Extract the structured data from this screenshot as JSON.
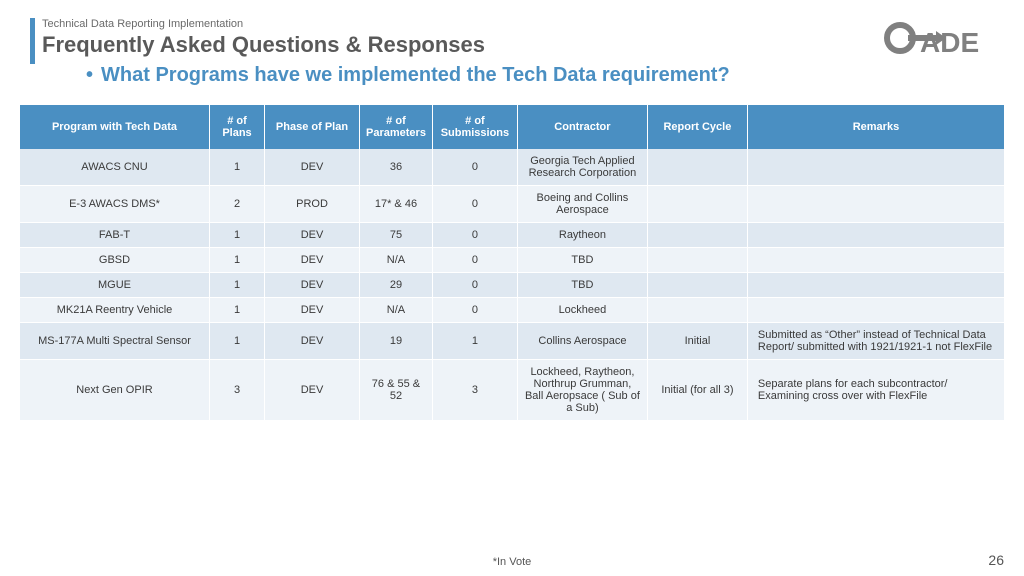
{
  "header": {
    "kicker": "Technical Data Reporting Implementation",
    "title": "Frequently Asked Questions & Responses",
    "subtitle": "What Programs have we implemented the Tech Data requirement?"
  },
  "logo": {
    "text": "CADE",
    "fill": "#808080"
  },
  "table": {
    "header_bg": "#4a8fc2",
    "header_fg": "#ffffff",
    "band_a_bg": "#dfe8f1",
    "band_b_bg": "#eef3f8",
    "columns": [
      "Program with Tech Data",
      "# of Plans",
      "Phase of Plan",
      "# of Parameters",
      "# of Submissions",
      "Contractor",
      "Report Cycle",
      "Remarks"
    ],
    "rows": [
      {
        "program": "AWACS CNU",
        "plans": "1",
        "phase": "DEV",
        "params": "36",
        "subs": "0",
        "contractor": "Georgia Tech Applied Research Corporation",
        "cycle": "",
        "remarks": ""
      },
      {
        "program": "E-3 AWACS DMS*",
        "plans": "2",
        "phase": "PROD",
        "params": "17* & 46",
        "subs": "0",
        "contractor": "Boeing and Collins Aerospace",
        "cycle": "",
        "remarks": ""
      },
      {
        "program": "FAB-T",
        "plans": "1",
        "phase": "DEV",
        "params": "75",
        "subs": "0",
        "contractor": "Raytheon",
        "cycle": "",
        "remarks": ""
      },
      {
        "program": "GBSD",
        "plans": "1",
        "phase": "DEV",
        "params": "N/A",
        "subs": "0",
        "contractor": "TBD",
        "cycle": "",
        "remarks": ""
      },
      {
        "program": "MGUE",
        "plans": "1",
        "phase": "DEV",
        "params": "29",
        "subs": "0",
        "contractor": "TBD",
        "cycle": "",
        "remarks": ""
      },
      {
        "program": "MK21A Reentry Vehicle",
        "plans": "1",
        "phase": "DEV",
        "params": "N/A",
        "subs": "0",
        "contractor": "Lockheed",
        "cycle": "",
        "remarks": ""
      },
      {
        "program": "MS-177A Multi Spectral Sensor",
        "plans": "1",
        "phase": "DEV",
        "params": "19",
        "subs": "1",
        "contractor": "Collins Aerospace",
        "cycle": "Initial",
        "remarks": "Submitted as “Other” instead of Technical Data Report/ submitted with 1921/1921-1 not FlexFile"
      },
      {
        "program": "Next Gen OPIR",
        "plans": "3",
        "phase": "DEV",
        "params": "76 & 55 & 52",
        "subs": "3",
        "contractor": "Lockheed, Raytheon, Northrup Grumman, Ball Aeropsace ( Sub of a Sub)",
        "cycle": "Initial (for all 3)",
        "remarks": "Separate plans for each subcontractor/ Examining cross over with FlexFile"
      }
    ]
  },
  "footnote": "*In Vote",
  "page_number": "26"
}
